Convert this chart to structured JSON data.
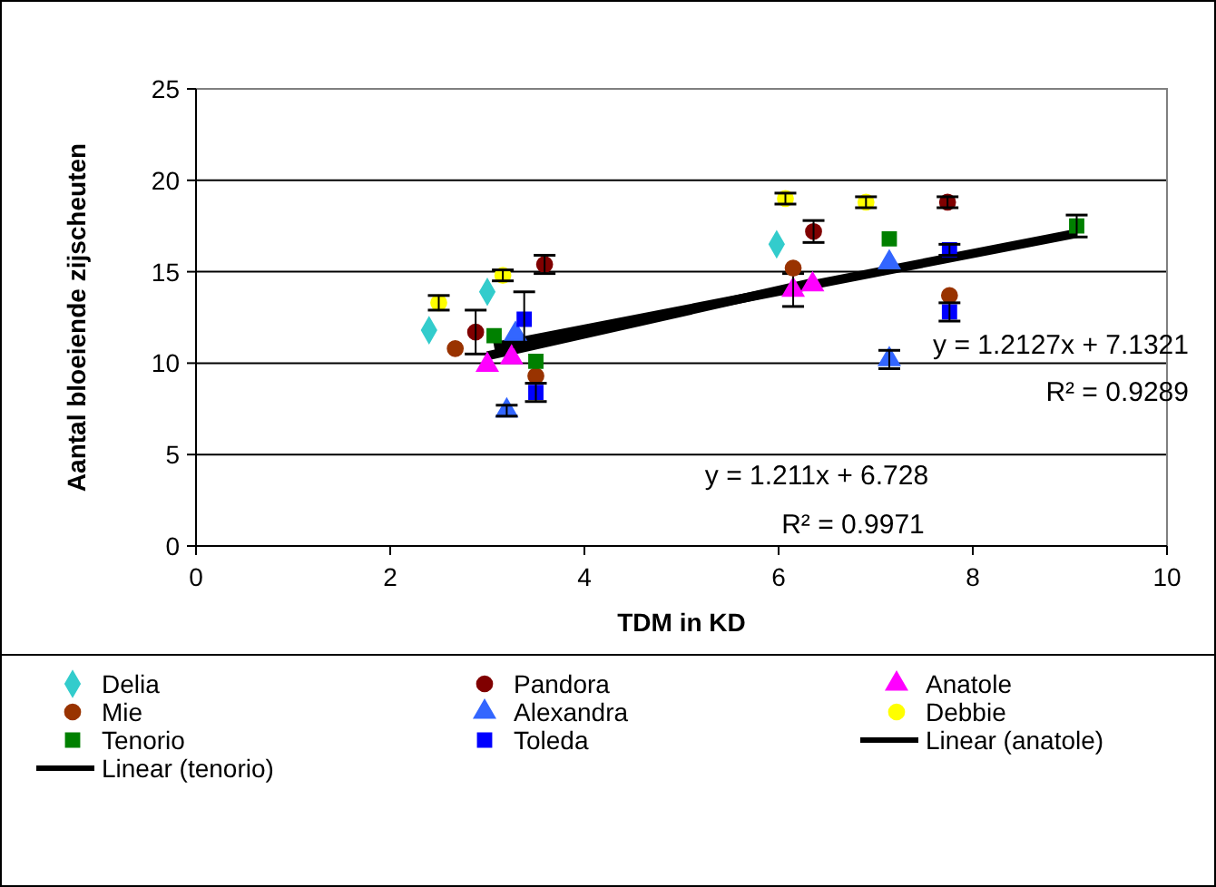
{
  "chart_data": {
    "type": "scatter",
    "xlabel": "TDM in KD",
    "ylabel": "Aantal bloeiende zijscheuten",
    "xlim": [
      0,
      10
    ],
    "ylim": [
      0,
      25
    ],
    "xticks": [
      0,
      2,
      4,
      6,
      8,
      10
    ],
    "yticks": [
      0,
      5,
      10,
      15,
      20,
      25
    ],
    "grid": "y",
    "legend": "bottom",
    "series": [
      {
        "name": "Delia",
        "color": "#33cccc",
        "marker": "diamond",
        "x": [
          2.4,
          3.0,
          5.98
        ],
        "values": [
          11.8,
          13.9,
          16.5
        ]
      },
      {
        "name": "Pandora",
        "color": "#800000",
        "marker": "circle",
        "x": [
          2.88,
          3.59,
          6.36,
          7.74
        ],
        "values": [
          11.7,
          15.4,
          17.2,
          18.8
        ],
        "errors": [
          1.2,
          0.5,
          0.6,
          0.3
        ]
      },
      {
        "name": "Anatole",
        "color": "#ff00ff",
        "marker": "triangle",
        "x": [
          3.0,
          3.25,
          6.15,
          6.35
        ],
        "values": [
          9.9,
          10.3,
          14.0,
          14.3
        ],
        "errors": [
          null,
          null,
          0.9,
          null
        ]
      },
      {
        "name": "Mie",
        "color": "#993300",
        "marker": "circle",
        "x": [
          2.67,
          3.5,
          6.15,
          7.76
        ],
        "values": [
          10.8,
          9.3,
          15.2,
          13.7
        ]
      },
      {
        "name": "Alexandra",
        "color": "#3366ff",
        "marker": "triangle",
        "x": [
          3.29,
          3.2,
          7.14,
          7.14
        ],
        "values": [
          11.6,
          7.4,
          15.5,
          10.2
        ],
        "errors": [
          null,
          0.3,
          null,
          0.5
        ]
      },
      {
        "name": "Debbie",
        "color": "#ffff00",
        "marker": "circle",
        "x": [
          2.5,
          3.16,
          6.07,
          6.9
        ],
        "values": [
          13.3,
          14.8,
          19.0,
          18.8
        ],
        "errors": [
          0.4,
          0.3,
          0.3,
          0.3
        ]
      },
      {
        "name": "Tenorio",
        "color": "#008000",
        "marker": "square",
        "x": [
          3.07,
          3.5,
          7.14,
          9.07
        ],
        "values": [
          11.5,
          10.1,
          16.8,
          17.5
        ],
        "errors": [
          null,
          null,
          null,
          0.6
        ]
      },
      {
        "name": "Toleda",
        "color": "#0000ff",
        "marker": "square",
        "x": [
          3.38,
          3.5,
          7.76,
          7.76
        ],
        "values": [
          12.4,
          8.4,
          16.2,
          12.8
        ],
        "errors": [
          1.5,
          0.5,
          0.3,
          0.5
        ]
      },
      {
        "name": "Linear (anatole)",
        "type": "line",
        "color": "#000000",
        "x": [
          3.0,
          6.35
        ],
        "values": [
          10.4,
          14.4
        ]
      },
      {
        "name": "Linear (tenorio)",
        "type": "line",
        "color": "#000000",
        "x": [
          3.07,
          9.07
        ],
        "values": [
          10.9,
          17.1
        ]
      }
    ],
    "annotations": [
      "y = 1.2127x + 7.1321",
      "R² = 0.9289",
      "y = 1.211x + 6.728",
      "R² = 0.9971"
    ]
  }
}
